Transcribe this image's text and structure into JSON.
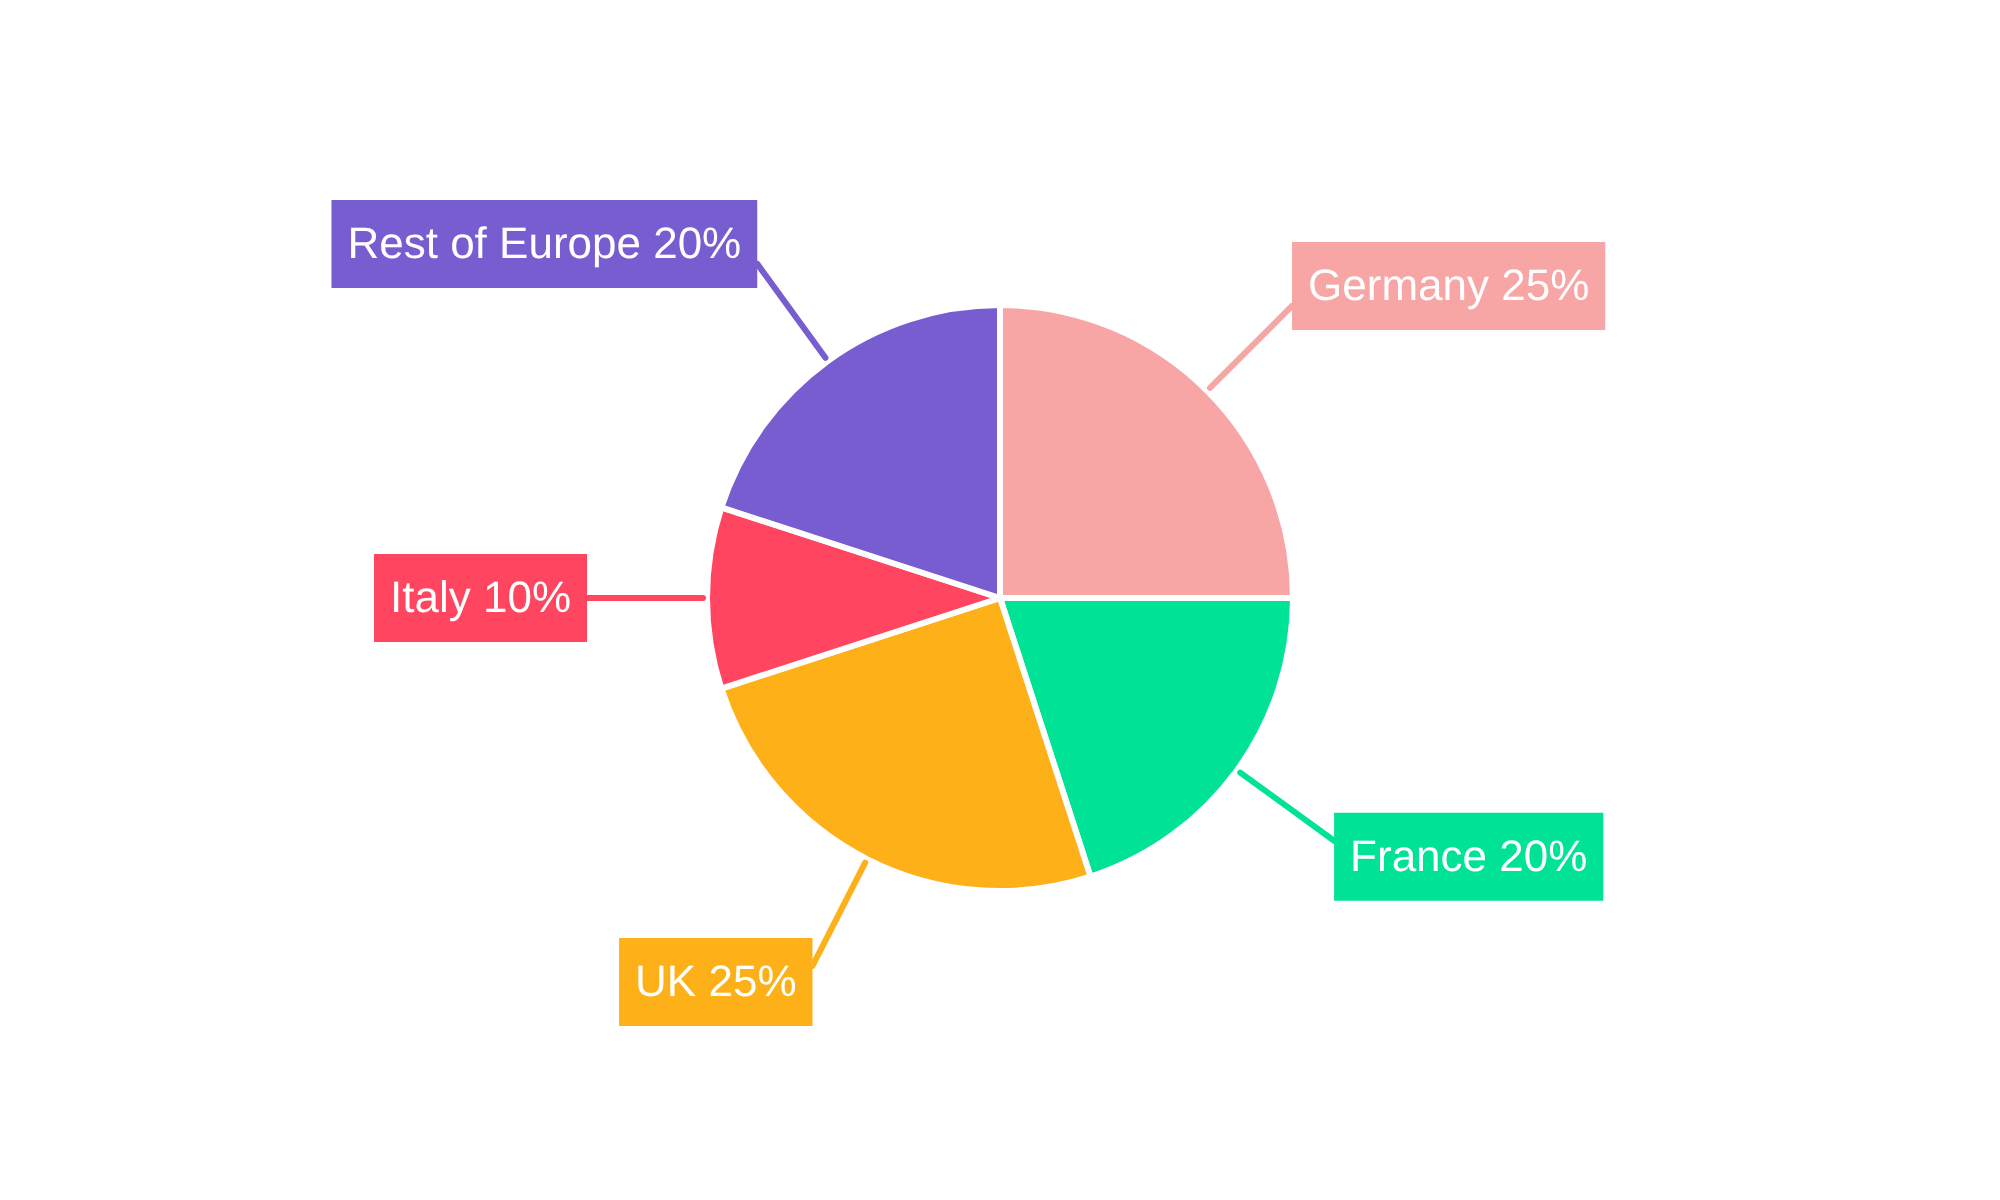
{
  "chart_data": {
    "type": "pie",
    "categories": [
      "Germany",
      "France",
      "UK",
      "Italy",
      "Rest of Europe"
    ],
    "values": [
      25,
      20,
      25,
      10,
      20
    ],
    "colors": [
      "#f8a5a5",
      "#00e396",
      "#feb019",
      "#ff4560",
      "#775dd0"
    ],
    "value_labels": [
      "25%",
      "20%",
      "25%",
      "10%",
      "20%"
    ]
  }
}
